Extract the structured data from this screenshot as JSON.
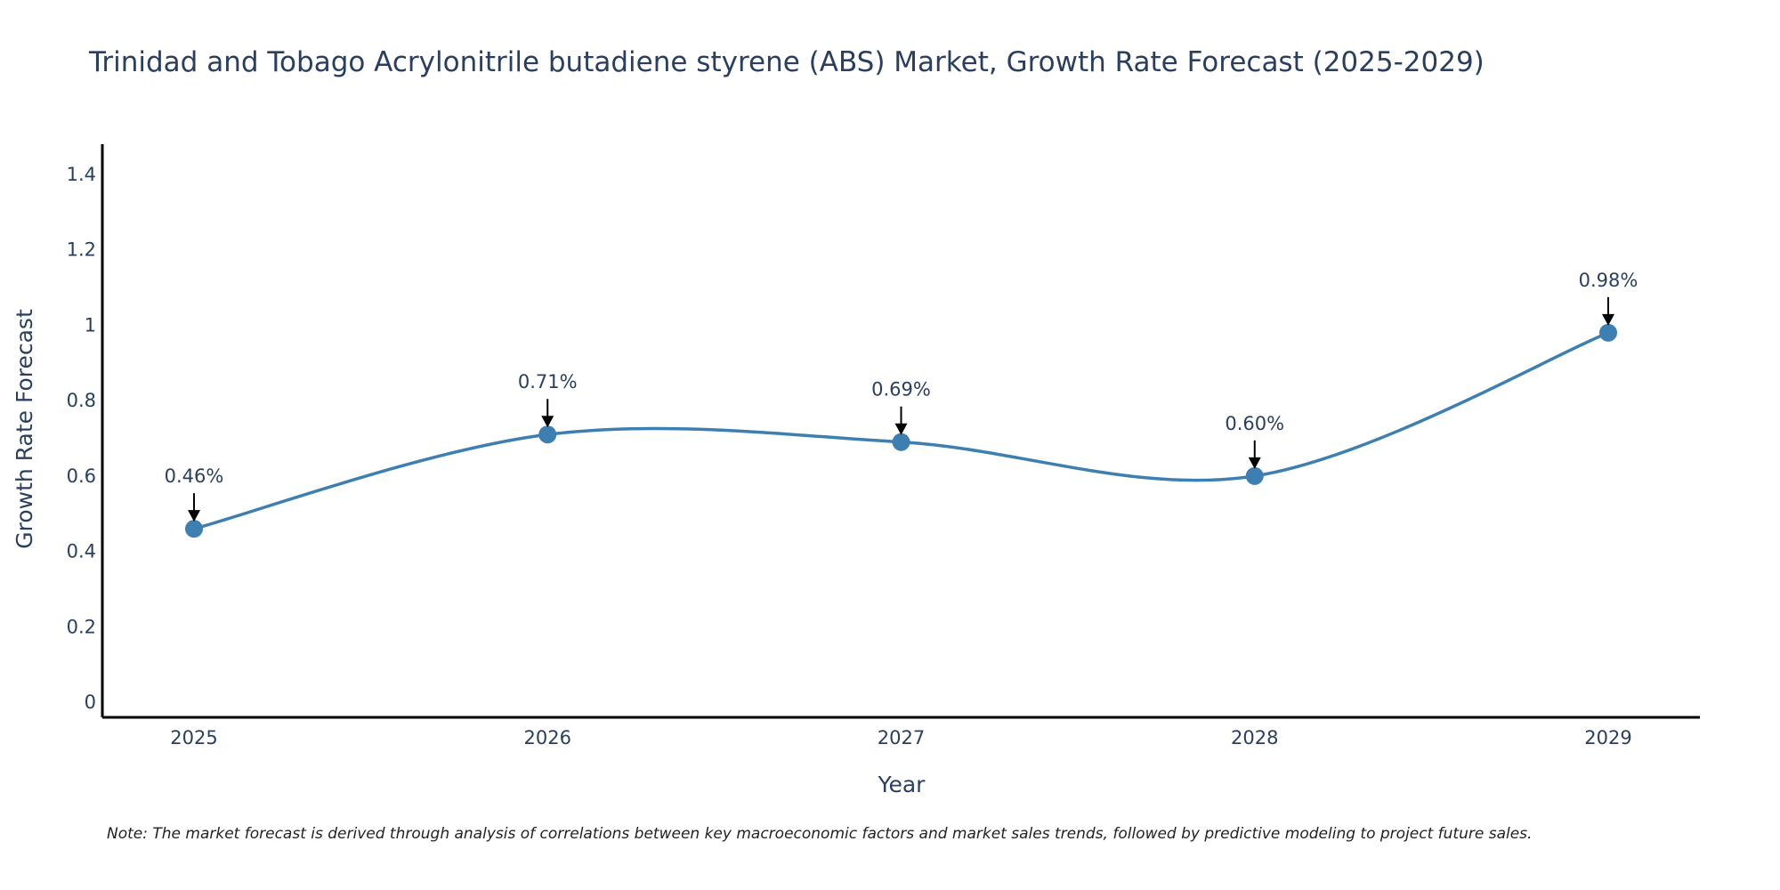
{
  "chart_data": {
    "type": "line",
    "title": "Trinidad and Tobago Acrylonitrile butadiene styrene (ABS) Market, Growth Rate Forecast (2025-2029)",
    "xlabel": "Year",
    "ylabel": "Growth Rate Forecast",
    "categories": [
      "2025",
      "2026",
      "2027",
      "2028",
      "2029"
    ],
    "values": [
      0.46,
      0.71,
      0.69,
      0.6,
      0.98
    ],
    "data_labels": [
      "0.46%",
      "0.71%",
      "0.69%",
      "0.60%",
      "0.98%"
    ],
    "yticks": [
      0,
      0.2,
      0.4,
      0.6,
      0.8,
      1,
      1.2,
      1.4
    ],
    "ytick_labels": [
      "0",
      "0.2",
      "0.4",
      "0.6",
      "0.8",
      "1",
      "1.2",
      "1.4"
    ],
    "ylim": [
      -0.04,
      1.48
    ],
    "line_shape": "spline",
    "grid": false,
    "legend": "none",
    "series_color": "#3d7fb0",
    "axis_color": "#000000",
    "note": "Note: The market forecast is derived through analysis of correlations between key macroeconomic factors and market sales trends, followed by predictive modeling to project future sales."
  }
}
